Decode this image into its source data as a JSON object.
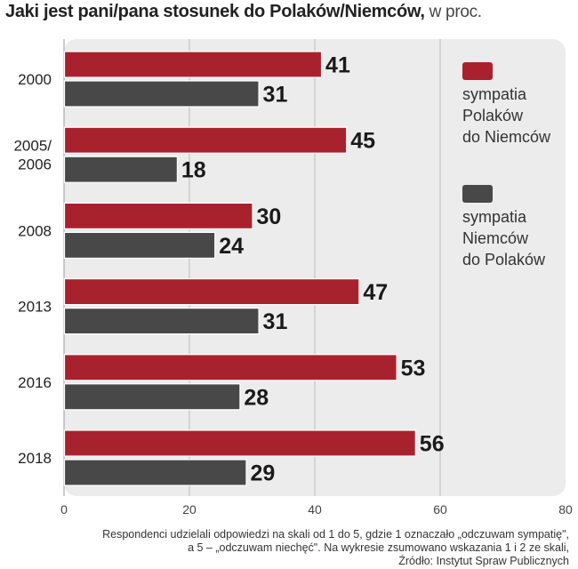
{
  "title": {
    "bold": "Jaki jest pani/pana stosunek do Polaków/Niemców,",
    "suffix": " w proc."
  },
  "chart_data": {
    "type": "bar",
    "orientation": "horizontal",
    "title": "Jaki jest pani/pana stosunek do Polaków/Niemców, w proc.",
    "categories": [
      "2000",
      "2005/\n2006",
      "2008",
      "2013",
      "2016",
      "2018"
    ],
    "series": [
      {
        "name": "sympatia\nPolaków\ndo Niemców",
        "color": "#a8222e",
        "values": [
          41,
          45,
          30,
          47,
          53,
          56
        ]
      },
      {
        "name": "sympatia\nNiemców\ndo Polaków",
        "color": "#484848",
        "values": [
          31,
          18,
          24,
          31,
          28,
          29
        ]
      }
    ],
    "xlim": [
      0,
      80
    ],
    "xticks": [
      0,
      20,
      40,
      60,
      80
    ],
    "xlabel": "",
    "ylabel": "",
    "grid": true,
    "legend_position": "right"
  },
  "footnote": {
    "lines": [
      "Respondenci udzielali odpowiedzi na skali od 1 do 5, gdzie 1 oznaczało „odczuwam sympatię\",",
      "a 5 – „odczuwam niechęć\". Na wykresie zsumowano wskazania 1 i 2 ze skali,",
      "Źródło: Instytut Spraw Publicznych"
    ]
  }
}
